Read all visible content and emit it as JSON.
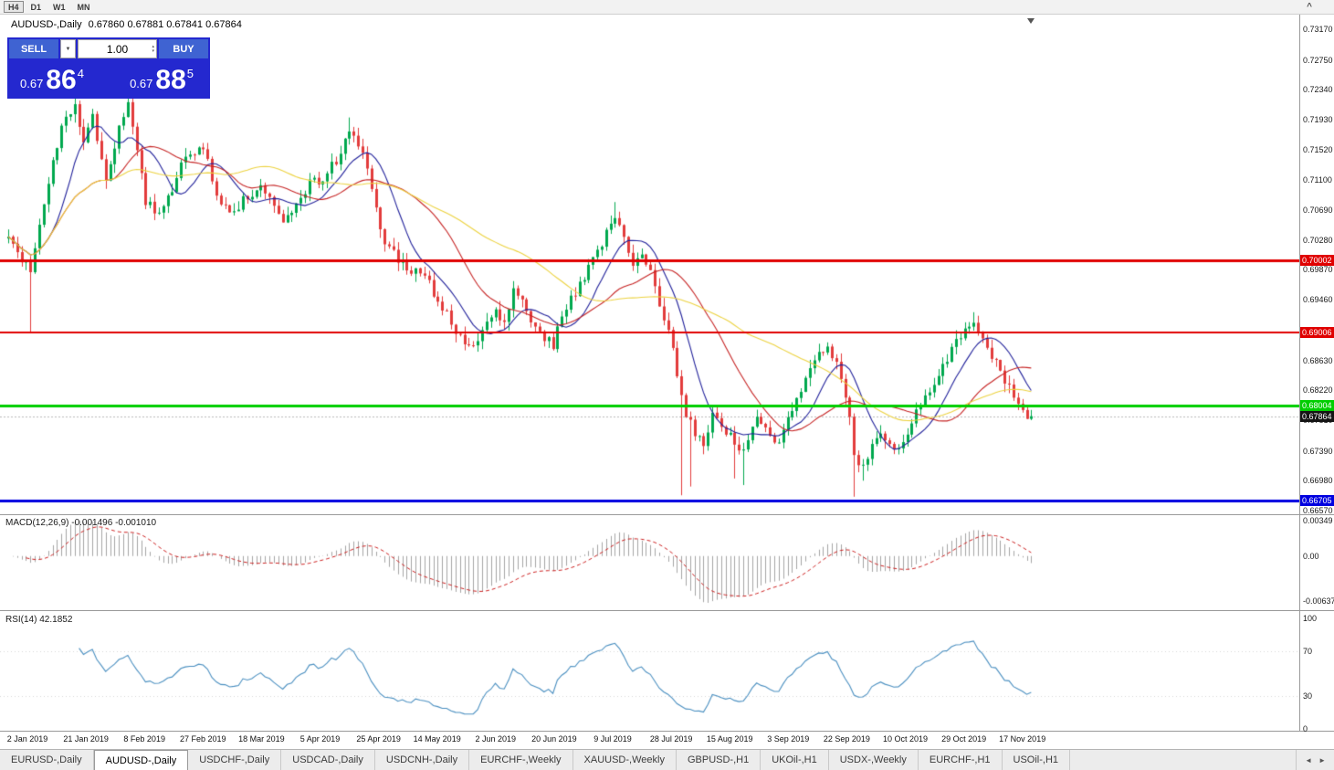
{
  "toolbar": {
    "timeframes": [
      {
        "label": "H4",
        "active": true
      },
      {
        "label": "D1",
        "active": false
      },
      {
        "label": "W1",
        "active": false
      },
      {
        "label": "MN",
        "active": false
      }
    ]
  },
  "icons": {
    "dropdown": "▼",
    "spin_up": "▴",
    "spin_down": "▾",
    "scroll_left": "◄",
    "scroll_right": "►",
    "chevron_up": "^"
  },
  "chart": {
    "title": "AUDUSD-,Daily",
    "ohlc_text": "0.67860 0.67881 0.67841 0.67864",
    "open": "0.67860",
    "high": "0.67881",
    "low": "0.67841",
    "close": "0.67864",
    "trade_panel": {
      "sell_label": "SELL",
      "buy_label": "BUY",
      "volume": "1.00",
      "sell_price": {
        "prefix": "0.67",
        "big": "86",
        "sup": "4"
      },
      "buy_price": {
        "prefix": "0.67",
        "big": "88",
        "sup": "5"
      }
    },
    "price_axis_labels": [
      "0.73170",
      "0.72750",
      "0.72340",
      "0.71930",
      "0.71520",
      "0.71100",
      "0.70690",
      "0.70280",
      "0.69870",
      "0.69460",
      "0.69040",
      "0.68630",
      "0.68220",
      "0.67810",
      "0.67390",
      "0.66980",
      "0.66570"
    ],
    "hlines": [
      {
        "price": 0.70002,
        "label": "0.70002",
        "color": "#e00000",
        "width": 3
      },
      {
        "price": 0.69006,
        "label": "0.69006",
        "color": "#e00000",
        "width": 2
      },
      {
        "price": 0.68004,
        "label": "0.68004",
        "color": "#00ce00",
        "width": 3
      },
      {
        "price": 0.66705,
        "label": "0.66705",
        "color": "#0000e0",
        "width": 3
      }
    ],
    "bid_tag": {
      "price": 0.67864,
      "label": "0.67864",
      "bg": "#151515"
    },
    "date_axis_labels": [
      "2 Jan 2019",
      "21 Jan 2019",
      "8 Feb 2019",
      "27 Feb 2019",
      "18 Mar 2019",
      "5 Apr 2019",
      "25 Apr 2019",
      "14 May 2019",
      "2 Jun 2019",
      "20 Jun 2019",
      "9 Jul 2019",
      "28 Jul 2019",
      "15 Aug 2019",
      "3 Sep 2019",
      "22 Sep 2019",
      "10 Oct 2019",
      "29 Oct 2019",
      "17 Nov 2019"
    ]
  },
  "macd_panel": {
    "label": "MACD(12,26,9) -0.001496 -0.001010",
    "axis_max": "0.00349",
    "axis_zero": "0.00",
    "axis_min": "-0.00637"
  },
  "rsi_panel": {
    "label": "RSI(14) 42.1852",
    "axis": [
      "100",
      "70",
      "30",
      "0"
    ],
    "value": 42.1852,
    "levels": [
      70,
      30
    ]
  },
  "tabs": [
    {
      "label": "EURUSD-,Daily",
      "active": false
    },
    {
      "label": "AUDUSD-,Daily",
      "active": true
    },
    {
      "label": "USDCHF-,Daily",
      "active": false
    },
    {
      "label": "USDCAD-,Daily",
      "active": false
    },
    {
      "label": "USDCNH-,Daily",
      "active": false
    },
    {
      "label": "EURCHF-,Weekly",
      "active": false
    },
    {
      "label": "XAUUSD-,Weekly",
      "active": false
    },
    {
      "label": "GBPUSD-,H1",
      "active": false
    },
    {
      "label": "UKOil-,H1",
      "active": false
    },
    {
      "label": "USDX-,Weekly",
      "active": false
    },
    {
      "label": "EURCHF-,H1",
      "active": false
    },
    {
      "label": "USOil-,H1",
      "active": false
    }
  ],
  "chart_data": {
    "type": "candlestick",
    "symbol": "AUDUSD",
    "period": "Daily",
    "candles": 232,
    "ylim": [
      0.6652,
      0.7337
    ],
    "last_close": 0.67864,
    "up_color": "#00a84e",
    "down_color": "#e23b3b",
    "close_anchors": [
      [
        0,
        0.703
      ],
      [
        3,
        0.6998
      ],
      [
        5,
        0.699
      ],
      [
        7,
        0.7055
      ],
      [
        9,
        0.7105
      ],
      [
        12,
        0.7185
      ],
      [
        15,
        0.7218
      ],
      [
        17,
        0.716
      ],
      [
        19,
        0.72
      ],
      [
        22,
        0.7108
      ],
      [
        25,
        0.718
      ],
      [
        27,
        0.7218
      ],
      [
        29,
        0.715
      ],
      [
        31,
        0.708
      ],
      [
        34,
        0.7062
      ],
      [
        37,
        0.7098
      ],
      [
        40,
        0.7142
      ],
      [
        44,
        0.7158
      ],
      [
        47,
        0.7085
      ],
      [
        50,
        0.7062
      ],
      [
        53,
        0.7082
      ],
      [
        57,
        0.71
      ],
      [
        59,
        0.708
      ],
      [
        62,
        0.7052
      ],
      [
        65,
        0.7082
      ],
      [
        68,
        0.7105
      ],
      [
        71,
        0.7112
      ],
      [
        74,
        0.7138
      ],
      [
        77,
        0.7178
      ],
      [
        80,
        0.7148
      ],
      [
        82,
        0.7098
      ],
      [
        85,
        0.7022
      ],
      [
        88,
        0.7002
      ],
      [
        91,
        0.6988
      ],
      [
        94,
        0.698
      ],
      [
        97,
        0.6942
      ],
      [
        99,
        0.693
      ],
      [
        101,
        0.6902
      ],
      [
        104,
        0.6878
      ],
      [
        107,
        0.6902
      ],
      [
        110,
        0.6928
      ],
      [
        112,
        0.692
      ],
      [
        114,
        0.6955
      ],
      [
        117,
        0.6932
      ],
      [
        120,
        0.6902
      ],
      [
        123,
        0.6885
      ],
      [
        125,
        0.6928
      ],
      [
        128,
        0.6958
      ],
      [
        131,
        0.6988
      ],
      [
        133,
        0.7008
      ],
      [
        135,
        0.7042
      ],
      [
        137,
        0.706
      ],
      [
        139,
        0.703
      ],
      [
        141,
        0.6995
      ],
      [
        143,
        0.7015
      ],
      [
        145,
        0.6985
      ],
      [
        147,
        0.6942
      ],
      [
        149,
        0.6905
      ],
      [
        151,
        0.6845
      ],
      [
        153,
        0.6788
      ],
      [
        155,
        0.6765
      ],
      [
        157,
        0.6752
      ],
      [
        159,
        0.6788
      ],
      [
        161,
        0.6775
      ],
      [
        163,
        0.676
      ],
      [
        165,
        0.6742
      ],
      [
        167,
        0.6752
      ],
      [
        169,
        0.6788
      ],
      [
        171,
        0.6772
      ],
      [
        173,
        0.6745
      ],
      [
        175,
        0.6768
      ],
      [
        177,
        0.6795
      ],
      [
        179,
        0.6822
      ],
      [
        181,
        0.6848
      ],
      [
        183,
        0.6872
      ],
      [
        185,
        0.688
      ],
      [
        187,
        0.6862
      ],
      [
        189,
        0.6815
      ],
      [
        190,
        0.678
      ],
      [
        191,
        0.6735
      ],
      [
        193,
        0.6715
      ],
      [
        195,
        0.6745
      ],
      [
        197,
        0.6768
      ],
      [
        199,
        0.6752
      ],
      [
        201,
        0.6738
      ],
      [
        203,
        0.6768
      ],
      [
        205,
        0.679
      ],
      [
        207,
        0.6815
      ],
      [
        209,
        0.6832
      ],
      [
        211,
        0.6855
      ],
      [
        213,
        0.6878
      ],
      [
        215,
        0.6895
      ],
      [
        217,
        0.6908
      ],
      [
        218,
        0.6912
      ],
      [
        220,
        0.6895
      ],
      [
        222,
        0.687
      ],
      [
        224,
        0.6848
      ],
      [
        226,
        0.6826
      ],
      [
        228,
        0.6806
      ],
      [
        229,
        0.6795
      ],
      [
        230,
        0.6787
      ],
      [
        231,
        0.67864
      ]
    ],
    "spike_lows": [
      [
        5,
        0.69
      ],
      [
        152,
        0.6678
      ],
      [
        154,
        0.669
      ],
      [
        164,
        0.6701
      ],
      [
        166,
        0.6692
      ],
      [
        191,
        0.6676
      ],
      [
        193,
        0.6698
      ]
    ],
    "spike_highs": [
      [
        15,
        0.7238
      ],
      [
        27,
        0.723
      ],
      [
        77,
        0.7196
      ],
      [
        137,
        0.708
      ],
      [
        218,
        0.6929
      ]
    ],
    "ma_lines": [
      {
        "period": 10,
        "color": "#20209a"
      },
      {
        "period": 25,
        "color": "#c62424"
      },
      {
        "period": 50,
        "color": "#ecd240"
      }
    ],
    "macd": {
      "fast": 12,
      "slow": 26,
      "signal_period": 9,
      "hist_color": "#a4a4a4",
      "signal_color": "#cc2020",
      "value": -0.001496,
      "signal_value": -0.00101
    },
    "rsi": {
      "period": 14,
      "color": "#4a8fc0",
      "value": 42.1852
    }
  }
}
